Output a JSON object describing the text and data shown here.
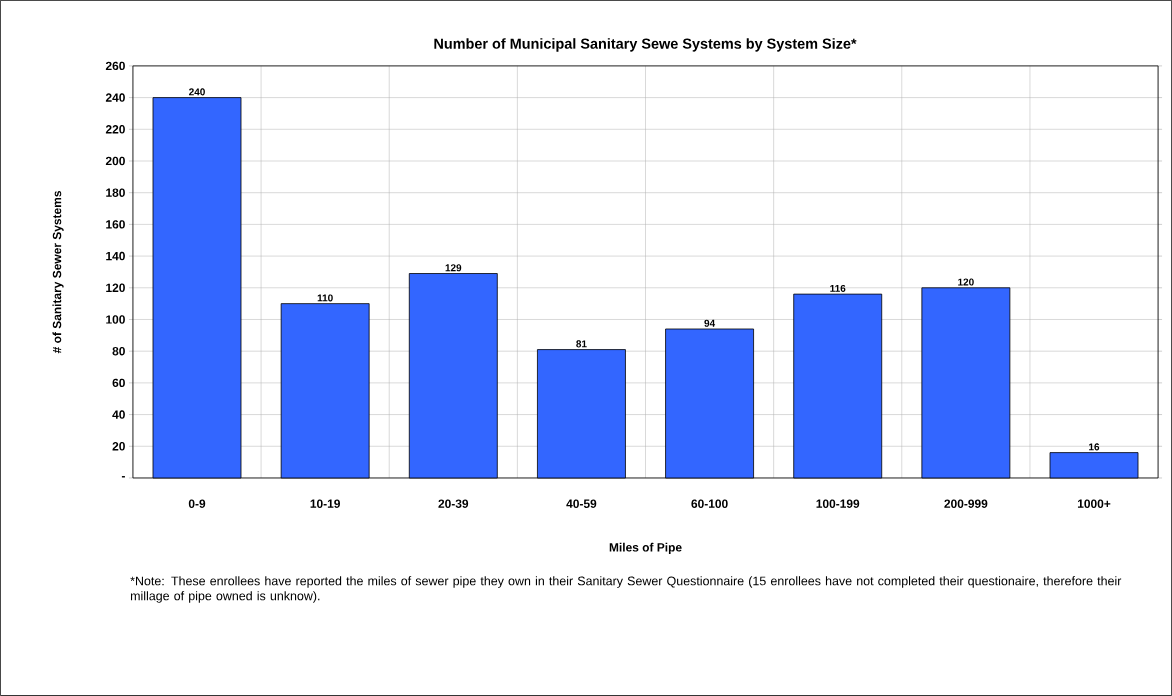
{
  "chart_data": {
    "type": "bar",
    "title": "Number of Municipal Sanitary Sewe Systems by System Size*",
    "xlabel": "Miles of Pipe",
    "ylabel": "# of Sanitary Sewer Systems",
    "categories": [
      "0-9",
      "10-19",
      "20-39",
      "40-59",
      "60-100",
      "100-199",
      "200-999",
      "1000+"
    ],
    "values": [
      240,
      110,
      129,
      81,
      94,
      116,
      120,
      16
    ],
    "color": "#3366ff",
    "ylim": [
      0,
      260
    ],
    "yticks": [
      {
        "value": 0,
        "label": "-"
      },
      20,
      40,
      60,
      80,
      100,
      120,
      140,
      160,
      180,
      200,
      220,
      240,
      260
    ],
    "grid": true,
    "data_labels": true,
    "annotations": [
      "*Note: These enrollees have reported the miles of sewer pipe they own in their Sanitary Sewer Questionnaire (15 enrollees have not completed their questionaire, therefore their millage of pipe owned is unknow)."
    ]
  }
}
